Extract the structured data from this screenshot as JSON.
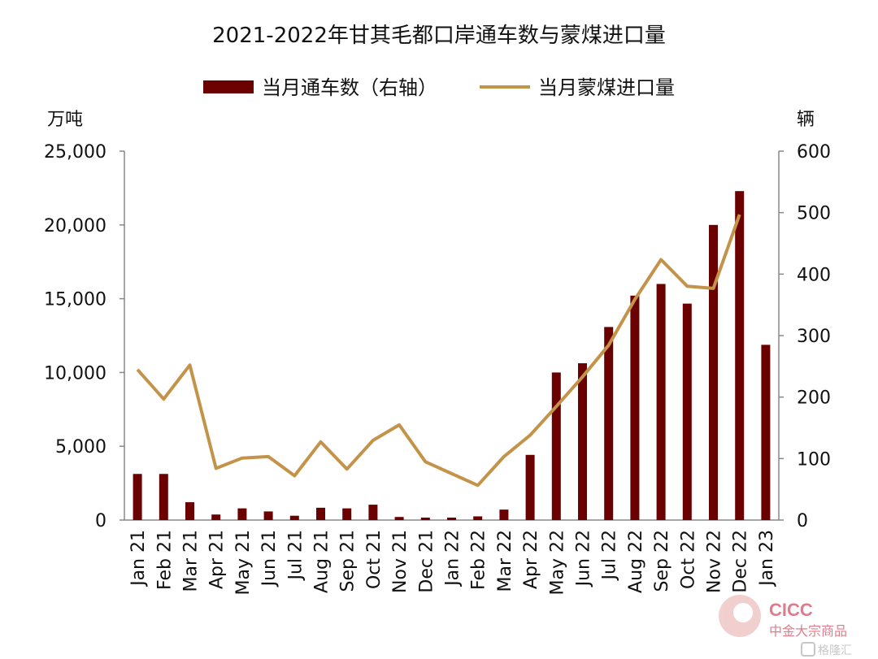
{
  "chart_data": {
    "type": "bar",
    "title": "2021-2022年甘其毛都口岸通车数与蒙煤进口量",
    "left_unit": "万吨",
    "right_unit": "辆",
    "categories": [
      "Jan 21",
      "Feb 21",
      "Mar 21",
      "Apr 21",
      "May 21",
      "Jun 21",
      "Jul 21",
      "Aug 21",
      "Sep 21",
      "Oct 21",
      "Nov 21",
      "Dec 21",
      "Jan 22",
      "Feb 22",
      "Mar 22",
      "Apr 22",
      "May 22",
      "Jun 22",
      "Jul 22",
      "Aug 22",
      "Sep 22",
      "Oct 22",
      "Nov 22",
      "Dec 22",
      "Jan 23"
    ],
    "series": [
      {
        "name": "当月通车数（右轴）",
        "type": "bar",
        "axis": "right",
        "color": "#6b0000",
        "values": [
          75,
          75,
          29,
          9,
          19,
          14,
          7,
          20,
          19,
          25,
          5,
          4,
          4,
          6,
          17,
          106,
          240,
          255,
          314,
          365,
          384,
          352,
          480,
          535,
          285
        ]
      },
      {
        "name": "当月蒙煤进口量",
        "type": "line",
        "axis": "left",
        "color": "#c4934a",
        "values": [
          10200,
          8200,
          10500,
          3500,
          4200,
          4300,
          3000,
          5300,
          3450,
          5400,
          6450,
          3950,
          3150,
          2350,
          4300,
          5750,
          7700,
          9700,
          11850,
          14950,
          17650,
          15850,
          15700,
          20700,
          null
        ]
      }
    ],
    "left_axis": {
      "min": 0,
      "max": 25000,
      "ticks": [
        "0",
        "5,000",
        "10,000",
        "15,000",
        "20,000",
        "25,000"
      ]
    },
    "right_axis": {
      "min": 0,
      "max": 600,
      "ticks": [
        "0",
        "100",
        "200",
        "300",
        "400",
        "500",
        "600"
      ]
    },
    "legend_position": "top-center",
    "grid": false
  },
  "watermark": {
    "brand": "CICC",
    "subtitle": "中金大宗商品",
    "source": "格隆汇",
    "colors": {
      "accent": "#c8102e",
      "muted": "#e8a9a9",
      "gray": "#9a9a9a"
    }
  }
}
